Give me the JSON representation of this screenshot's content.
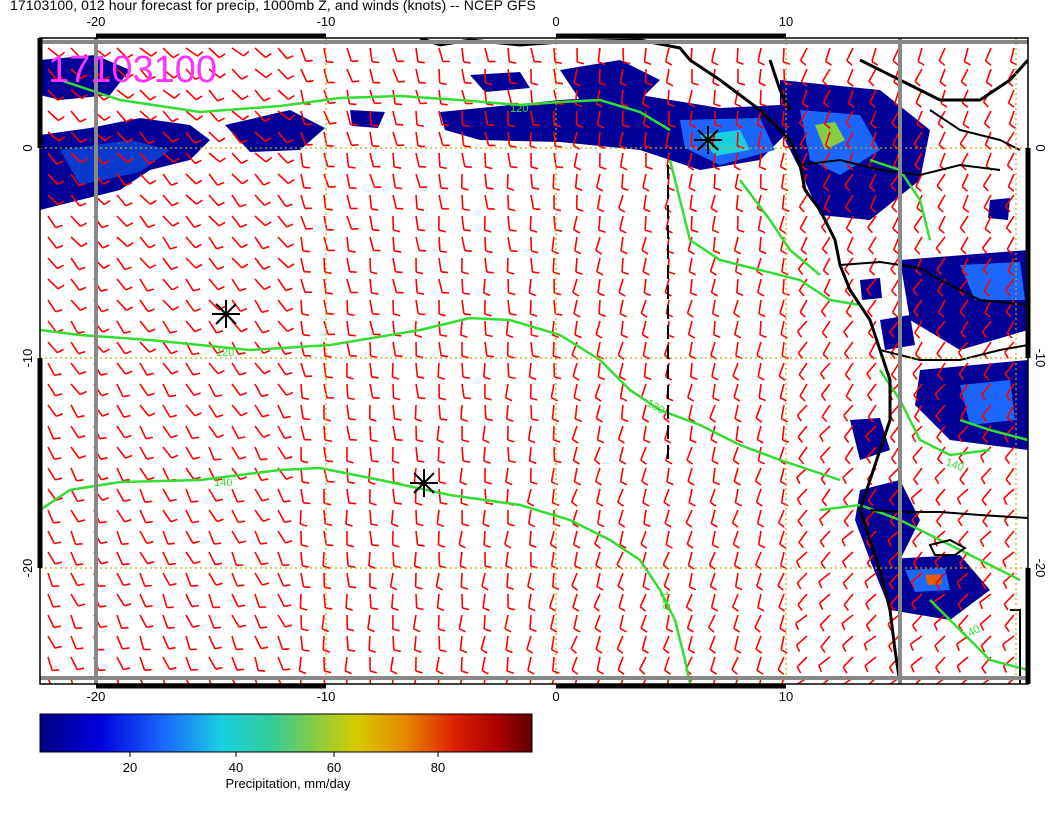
{
  "title": "17103100, 012 hour forecast for precip, 1000mb Z, and winds (knots) -- NCEP GFS",
  "stamp": "17103100",
  "lon_ticks": [
    "-20",
    "-10",
    "0",
    "10"
  ],
  "lat_ticks": [
    "0",
    "-10",
    "-20"
  ],
  "contour_labels": [
    "120",
    "120",
    "130",
    "140",
    "140",
    "140",
    "140"
  ],
  "colorbar": {
    "label": "Precipitation, mm/day",
    "ticks": [
      "20",
      "40",
      "60",
      "80"
    ],
    "colors": [
      "#000080",
      "#0000cc",
      "#1a4dff",
      "#1aa3ff",
      "#1ad9d9",
      "#33cc99",
      "#88cc44",
      "#cccc00",
      "#e6a000",
      "#e65c00",
      "#cc0000",
      "#990000",
      "#600000"
    ]
  },
  "colors": {
    "wind_barbs": "#ff0000",
    "contours": "#33dd33",
    "gridlines": "#ccaa00",
    "coastline": "#000000",
    "stamp": "#ff33ff"
  }
}
